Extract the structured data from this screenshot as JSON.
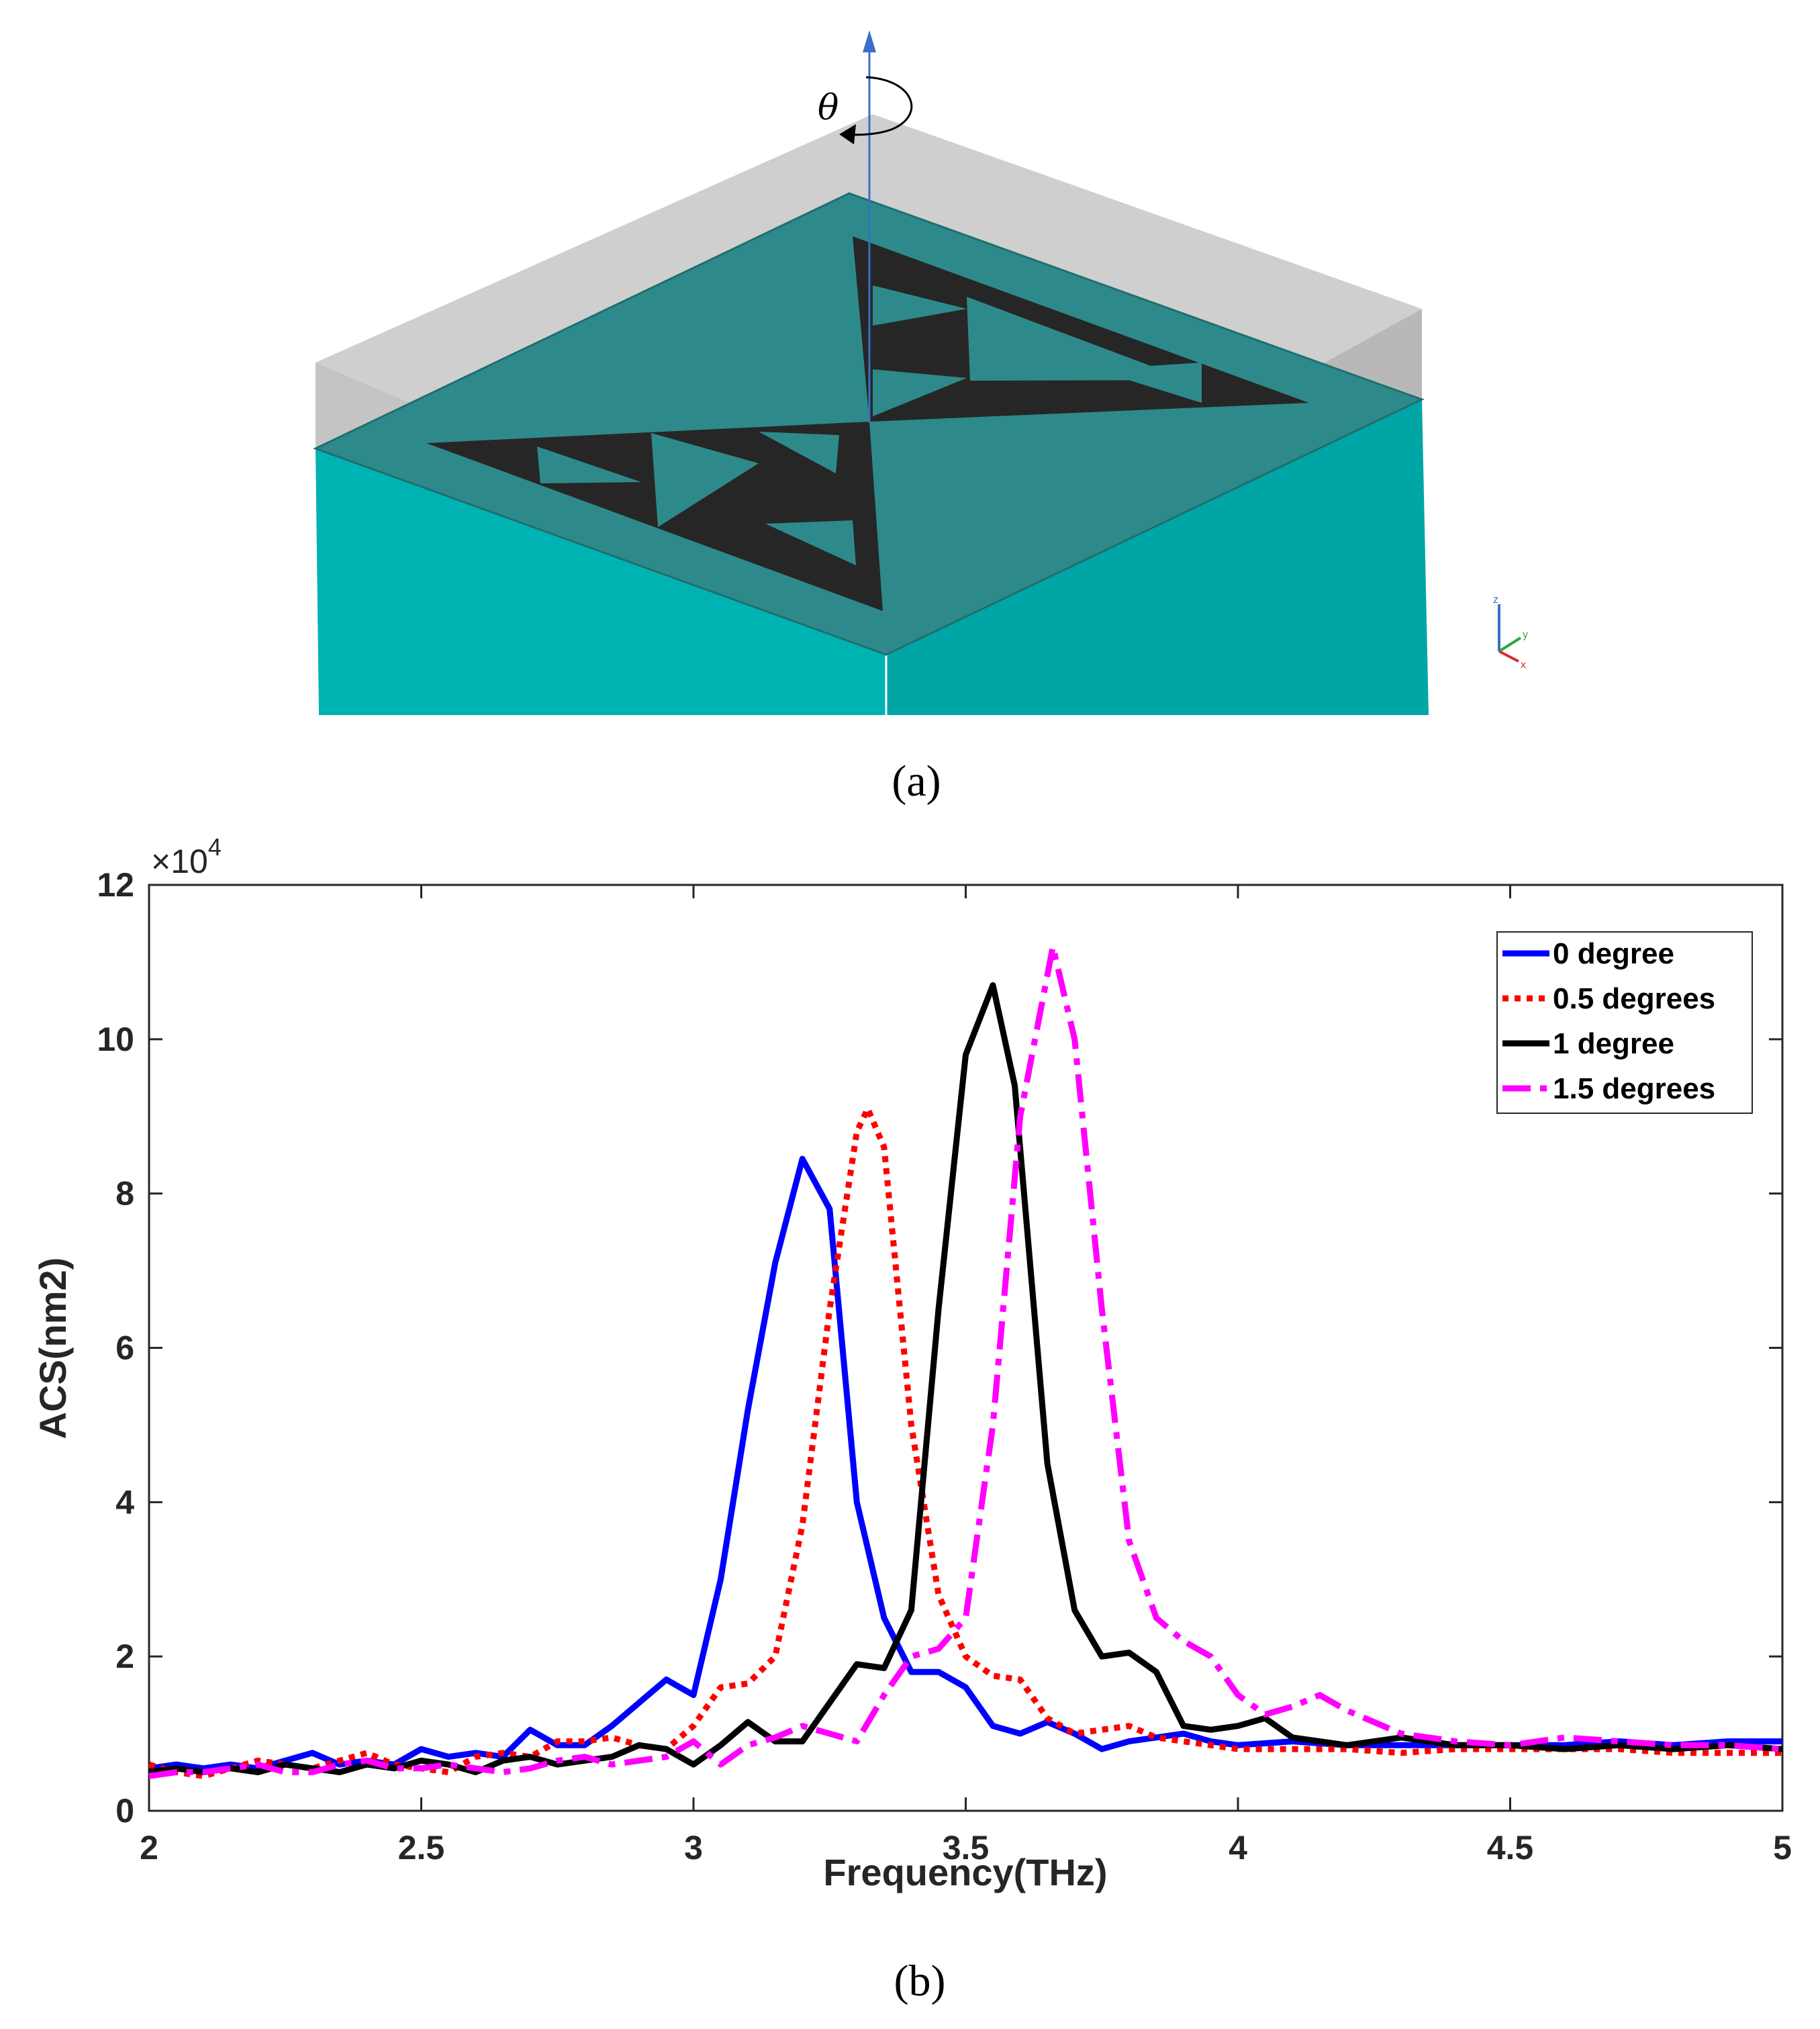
{
  "panel_a": {
    "caption": "(a)",
    "rotation_symbol": "θ",
    "axis_triad": {
      "z": "z",
      "y": "y",
      "x": "x"
    },
    "colors": {
      "substrate": "#00b3b3",
      "substrate_dark": "#00a6a6",
      "top_face": "#2e8a8a",
      "superstrate": "#cfcfcf",
      "fractal": "#262626",
      "axis_arrow": "#3a6fc8"
    }
  },
  "panel_b": {
    "caption": "(b)"
  },
  "chart_data": {
    "type": "line",
    "title": "",
    "xlabel": "Frequency(THz)",
    "ylabel": "ACS(nm2)",
    "y_multiplier": "×10",
    "y_multiplier_exp": "4",
    "xlim": [
      2,
      5
    ],
    "ylim": [
      0,
      12
    ],
    "xticks": [
      2,
      2.5,
      3,
      3.5,
      4,
      4.5,
      5
    ],
    "xtick_labels": [
      "2",
      "2.5",
      "3",
      "3.5",
      "4",
      "4.5",
      "5"
    ],
    "yticks": [
      0,
      2,
      4,
      6,
      8,
      10,
      12
    ],
    "ytick_labels": [
      "0",
      "2",
      "4",
      "6",
      "8",
      "10",
      "12"
    ],
    "legend_position": "top-right",
    "grid": false,
    "series": [
      {
        "name": "0 degree",
        "color": "#0000ff",
        "style": "solid",
        "x": [
          2.0,
          2.05,
          2.1,
          2.15,
          2.2,
          2.25,
          2.3,
          2.35,
          2.4,
          2.45,
          2.5,
          2.55,
          2.6,
          2.65,
          2.7,
          2.75,
          2.8,
          2.85,
          2.9,
          2.95,
          3.0,
          3.05,
          3.1,
          3.15,
          3.2,
          3.25,
          3.3,
          3.35,
          3.4,
          3.45,
          3.5,
          3.55,
          3.6,
          3.65,
          3.7,
          3.75,
          3.8,
          3.85,
          3.9,
          3.95,
          4.0,
          4.1,
          4.2,
          4.3,
          4.4,
          4.5,
          4.6,
          4.7,
          4.8,
          4.9,
          5.0
        ],
        "y": [
          0.55,
          0.6,
          0.55,
          0.6,
          0.55,
          0.65,
          0.75,
          0.6,
          0.65,
          0.6,
          0.8,
          0.7,
          0.75,
          0.7,
          1.05,
          0.85,
          0.85,
          1.1,
          1.4,
          1.7,
          1.5,
          3.0,
          5.2,
          7.1,
          8.45,
          7.8,
          4.0,
          2.5,
          1.8,
          1.8,
          1.6,
          1.1,
          1.0,
          1.15,
          1.0,
          0.8,
          0.9,
          0.95,
          1.0,
          0.9,
          0.85,
          0.9,
          0.85,
          0.85,
          0.85,
          0.85,
          0.85,
          0.9,
          0.85,
          0.9,
          0.9
        ]
      },
      {
        "name": "0.5 degrees",
        "color": "#ff0000",
        "style": "dotted",
        "x": [
          2.0,
          2.05,
          2.1,
          2.15,
          2.2,
          2.25,
          2.3,
          2.35,
          2.4,
          2.45,
          2.5,
          2.55,
          2.6,
          2.65,
          2.7,
          2.75,
          2.8,
          2.85,
          2.9,
          2.95,
          3.0,
          3.05,
          3.1,
          3.15,
          3.2,
          3.25,
          3.3,
          3.32,
          3.35,
          3.4,
          3.45,
          3.5,
          3.55,
          3.6,
          3.65,
          3.7,
          3.75,
          3.8,
          3.85,
          3.9,
          3.95,
          4.0,
          4.1,
          4.2,
          4.3,
          4.4,
          4.5,
          4.6,
          4.7,
          4.8,
          4.9,
          5.0
        ],
        "y": [
          0.6,
          0.5,
          0.45,
          0.55,
          0.65,
          0.6,
          0.55,
          0.65,
          0.75,
          0.6,
          0.55,
          0.5,
          0.7,
          0.75,
          0.7,
          0.9,
          0.9,
          0.95,
          0.85,
          0.8,
          1.1,
          1.6,
          1.65,
          2.0,
          3.7,
          6.5,
          8.8,
          9.1,
          8.6,
          5.0,
          2.8,
          2.0,
          1.75,
          1.7,
          1.2,
          1.0,
          1.05,
          1.1,
          0.95,
          0.9,
          0.85,
          0.8,
          0.8,
          0.8,
          0.75,
          0.8,
          0.8,
          0.8,
          0.8,
          0.75,
          0.75,
          0.75
        ]
      },
      {
        "name": "1 degree",
        "color": "#000000",
        "style": "solid",
        "x": [
          2.0,
          2.05,
          2.1,
          2.15,
          2.2,
          2.25,
          2.3,
          2.35,
          2.4,
          2.45,
          2.5,
          2.55,
          2.6,
          2.65,
          2.7,
          2.75,
          2.8,
          2.85,
          2.9,
          2.95,
          3.0,
          3.05,
          3.1,
          3.15,
          3.2,
          3.25,
          3.3,
          3.35,
          3.4,
          3.45,
          3.5,
          3.55,
          3.59,
          3.65,
          3.7,
          3.75,
          3.8,
          3.85,
          3.9,
          3.95,
          4.0,
          4.05,
          4.1,
          4.2,
          4.3,
          4.4,
          4.5,
          4.6,
          4.7,
          4.8,
          4.9,
          5.0
        ],
        "y": [
          0.5,
          0.55,
          0.5,
          0.55,
          0.5,
          0.6,
          0.55,
          0.5,
          0.6,
          0.55,
          0.65,
          0.6,
          0.5,
          0.65,
          0.7,
          0.6,
          0.65,
          0.7,
          0.85,
          0.8,
          0.6,
          0.85,
          1.15,
          0.9,
          0.9,
          1.4,
          1.9,
          1.85,
          2.6,
          6.5,
          9.8,
          10.7,
          9.4,
          4.5,
          2.6,
          2.0,
          2.05,
          1.8,
          1.1,
          1.05,
          1.1,
          1.2,
          0.95,
          0.85,
          0.95,
          0.85,
          0.85,
          0.8,
          0.85,
          0.8,
          0.85,
          0.8
        ]
      },
      {
        "name": "1.5 degrees",
        "color": "#ff00ff",
        "style": "dashdot",
        "x": [
          2.0,
          2.05,
          2.1,
          2.15,
          2.2,
          2.25,
          2.3,
          2.35,
          2.4,
          2.45,
          2.5,
          2.55,
          2.6,
          2.65,
          2.7,
          2.75,
          2.8,
          2.85,
          2.9,
          2.95,
          3.0,
          3.05,
          3.1,
          3.15,
          3.2,
          3.25,
          3.3,
          3.35,
          3.4,
          3.45,
          3.5,
          3.55,
          3.6,
          3.66,
          3.7,
          3.75,
          3.8,
          3.85,
          3.9,
          3.95,
          4.0,
          4.05,
          4.1,
          4.15,
          4.2,
          4.3,
          4.4,
          4.5,
          4.6,
          4.7,
          4.8,
          4.9,
          5.0
        ],
        "y": [
          0.45,
          0.5,
          0.5,
          0.55,
          0.6,
          0.5,
          0.5,
          0.6,
          0.65,
          0.55,
          0.55,
          0.6,
          0.55,
          0.5,
          0.55,
          0.65,
          0.7,
          0.6,
          0.65,
          0.7,
          0.9,
          0.6,
          0.85,
          0.95,
          1.1,
          1.0,
          0.9,
          1.5,
          2.0,
          2.1,
          2.5,
          5.0,
          9.0,
          11.2,
          10.0,
          6.5,
          3.5,
          2.5,
          2.2,
          2.0,
          1.5,
          1.25,
          1.35,
          1.5,
          1.3,
          1.0,
          0.9,
          0.85,
          0.95,
          0.9,
          0.85,
          0.85,
          0.8
        ]
      }
    ]
  }
}
